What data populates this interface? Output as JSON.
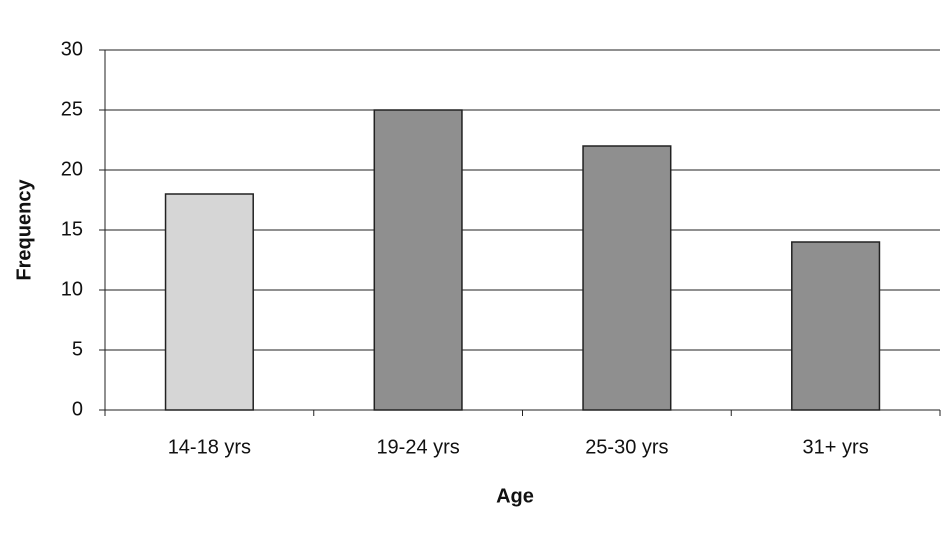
{
  "chart_data": {
    "type": "bar",
    "x_label": "Age",
    "y_label": "Frequency",
    "categories": [
      "14-18 yrs",
      "19-24 yrs",
      "25-30 yrs",
      "31+ yrs"
    ],
    "values": [
      18,
      25,
      22,
      14
    ],
    "colors": [
      "#d6d6d6",
      "#8f8f8f",
      "#8f8f8f",
      "#8f8f8f"
    ],
    "ylim": [
      0,
      30
    ],
    "yticks": [
      0,
      5,
      10,
      15,
      20,
      25,
      30
    ],
    "grid": true
  }
}
